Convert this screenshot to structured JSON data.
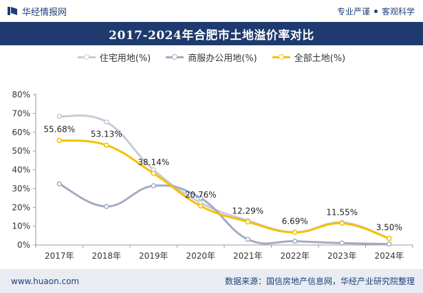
{
  "header": {
    "brand_name": "华经情报网",
    "slogan_left": "专业严谨",
    "slogan_right": "客观科学"
  },
  "colors": {
    "title_bg": "#1e3a6e",
    "series_residential": "#c7cad6",
    "series_commercial": "#a3abc2",
    "series_total": "#f5c000"
  },
  "footer": {
    "website": "www.huaon.com",
    "source": "数据来源：国信房地产信息网，华经产业研究院整理"
  },
  "chart_data": {
    "type": "line",
    "title": "2017-2024年合肥市土地溢价率对比",
    "categories": [
      "2017年",
      "2018年",
      "2019年",
      "2020年",
      "2021年",
      "2022年",
      "2023年",
      "2024年"
    ],
    "series": [
      {
        "name": "住宅用地(%)",
        "values": [
          68.5,
          65.5,
          40.0,
          22.5,
          13.0,
          6.8,
          12.0,
          3.5
        ]
      },
      {
        "name": "商服办公用地(%)",
        "values": [
          32.5,
          20.5,
          31.5,
          25.0,
          3.0,
          2.0,
          1.0,
          0.5
        ]
      },
      {
        "name": "全部土地(%)",
        "values": [
          55.68,
          53.13,
          38.14,
          20.76,
          12.29,
          6.69,
          11.55,
          3.5
        ],
        "labels": [
          "55.68%",
          "53.13%",
          "38.14%",
          "20.76%",
          "12.29%",
          "6.69%",
          "11.55%",
          "3.50%"
        ]
      }
    ],
    "yticks": [
      "0%",
      "10%",
      "20%",
      "30%",
      "40%",
      "50%",
      "60%",
      "70%",
      "80%"
    ],
    "ylim": [
      0,
      80
    ],
    "grid": false,
    "legend": "top"
  }
}
